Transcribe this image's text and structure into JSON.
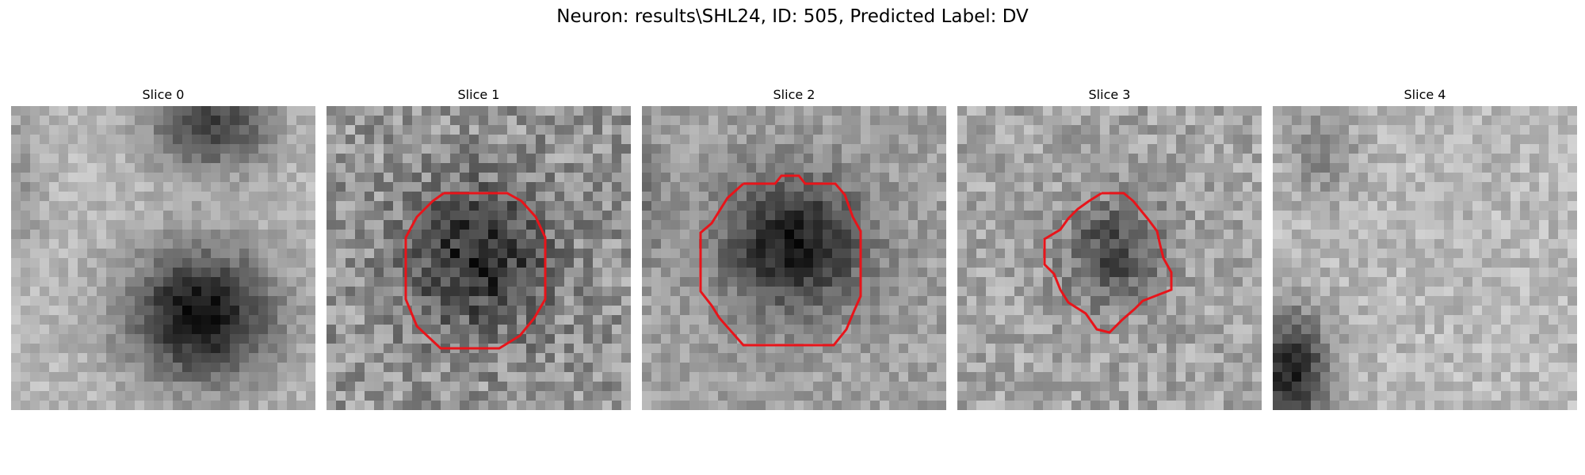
{
  "figure": {
    "title": "Neuron: results\\SHL24, ID: 505, Predicted Label: DV"
  },
  "panels": [
    {
      "title": "Slice 0",
      "has_contour": false
    },
    {
      "title": "Slice 1",
      "has_contour": true
    },
    {
      "title": "Slice 2",
      "has_contour": true
    },
    {
      "title": "Slice 3",
      "has_contour": true
    },
    {
      "title": "Slice 4",
      "has_contour": false
    }
  ],
  "colors": {
    "contour": "#e8141a",
    "background": "#ffffff"
  }
}
